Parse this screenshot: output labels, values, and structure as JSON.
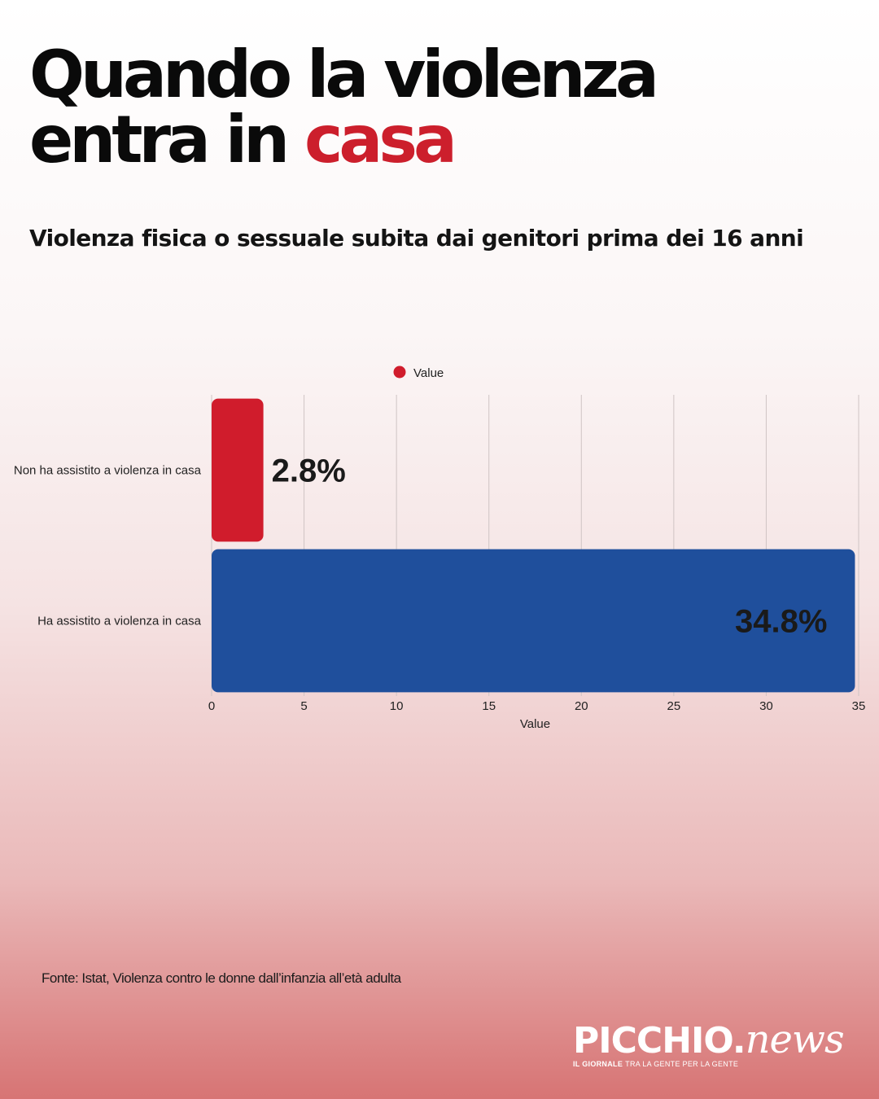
{
  "header": {
    "title_line1": "Quando la violenza",
    "title_line2_prefix": "entra in",
    "title_line2_accent": "casa",
    "subtitle": "Violenza fisica o sessuale subita dai genitori prima dei 16 anni"
  },
  "chart_data": {
    "type": "bar",
    "orientation": "horizontal",
    "legend": "Value",
    "legend_position": "top-center",
    "xlabel": "Value",
    "ylabel": "",
    "xlim": [
      0,
      35
    ],
    "xticks": [
      0,
      5,
      10,
      15,
      20,
      25,
      30,
      35
    ],
    "grid": true,
    "categories": [
      "Non ha assistito a violenza in casa",
      "Ha assistito a violenza in casa"
    ],
    "values": [
      2.8,
      34.8
    ],
    "data_labels": [
      "2.8%",
      "34.8%"
    ],
    "colors": [
      "#d01c2c",
      "#1f4f9c"
    ]
  },
  "footer": {
    "source": "Fonte: Istat, Violenza contro le donne dall’infanzia all’età adulta",
    "logo_word": "PICCHIO.",
    "logo_news": "news",
    "tag_bold": "IL GIORNALE",
    "tag_rest": "TRA LA GENTE PER LA GENTE"
  }
}
